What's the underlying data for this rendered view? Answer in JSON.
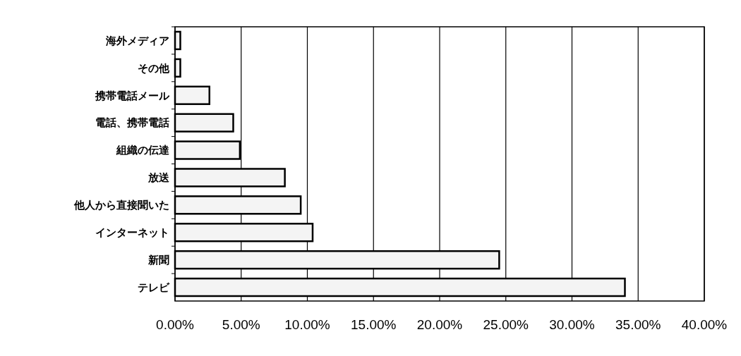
{
  "chart_data": {
    "type": "bar",
    "orientation": "horizontal",
    "categories": [
      "海外メディア",
      "その他",
      "携帯電話メール",
      "電話、携帯電話",
      "組織の伝達",
      "放送",
      "他人から直接聞いた",
      "インターネット",
      "新聞",
      "テレビ"
    ],
    "values": [
      0.4,
      0.4,
      2.6,
      4.4,
      4.9,
      8.3,
      9.5,
      10.4,
      24.5,
      34.0
    ],
    "color": "#f4f4f4",
    "xlim": [
      0,
      40
    ],
    "xticks": [
      {
        "value": 0,
        "label": "0.00%"
      },
      {
        "value": 5,
        "label": "5.00%"
      },
      {
        "value": 10,
        "label": "10.00%"
      },
      {
        "value": 15,
        "label": "15.00%"
      },
      {
        "value": 20,
        "label": "20.00%"
      },
      {
        "value": 25,
        "label": "25.00%"
      },
      {
        "value": 30,
        "label": "30.00%"
      },
      {
        "value": 35,
        "label": "35.00%"
      },
      {
        "value": 40,
        "label": "40.00%"
      }
    ],
    "grid": "x"
  }
}
